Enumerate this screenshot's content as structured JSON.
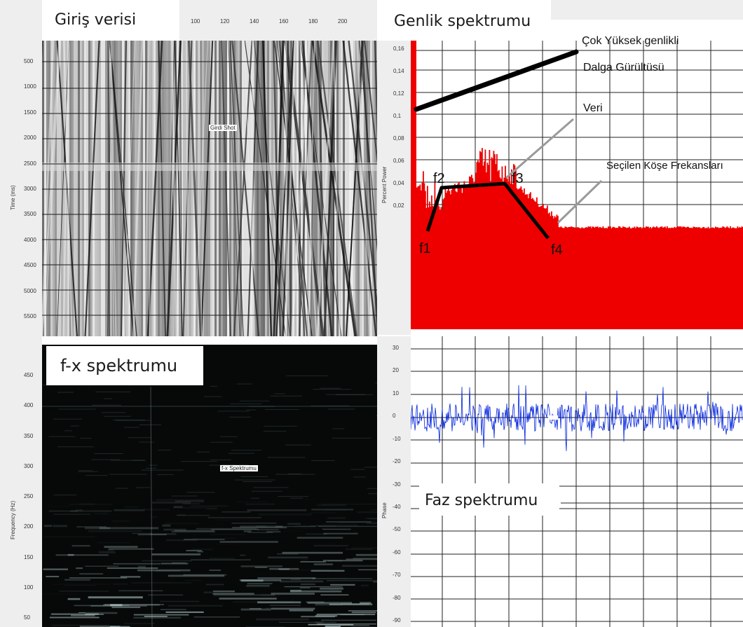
{
  "panels": {
    "input": {
      "title": "Giriş verisi",
      "inner_label": "Girdi Shot",
      "ylabel": "Time (ms)"
    },
    "amplitude": {
      "title": "Genlik spektrumu",
      "ylabel": "Percent Power"
    },
    "fx": {
      "title": "f-x spektrumu",
      "inner_label": "f-x Spektrumu",
      "ylabel": "Frequency (Hz)"
    },
    "phase": {
      "title": "Faz spektrumu",
      "ylabel": "Phase"
    }
  },
  "annotations": {
    "noise_line1": "Çok Yüksek genlikli",
    "noise_line2": "Dalga Gürültüsü",
    "data": "Veri",
    "corner": "Seçilen Köşe Frekansları",
    "f1": "f1",
    "f2": "f2",
    "f3": "f3",
    "f4": "f4"
  },
  "colors": {
    "amplitude_fill": "#ee0000",
    "phase_line": "#0022dd",
    "fx_bg": "#070909",
    "seismic_bg": "#b8b8b8"
  },
  "chart_data": [
    {
      "type": "area",
      "title": "Genlik spektrumu",
      "ylabel": "Percent Power",
      "y_ticks": [
        "0,16",
        "0,14",
        "0,12",
        "0,1",
        "0,08",
        "0,06",
        "0,04",
        "0,02"
      ],
      "grid": true,
      "corner_frequencies": [
        "f1",
        "f2",
        "f3",
        "f4"
      ]
    },
    {
      "type": "line",
      "title": "Faz spektrumu",
      "ylabel": "Phase",
      "y_ticks": [
        "30",
        "20",
        "10",
        "0",
        "-10",
        "-20",
        "-30",
        "-40",
        "-50",
        "-60",
        "-70",
        "-80",
        "-90"
      ],
      "grid": true
    },
    {
      "type": "heatmap",
      "title": "Giriş verisi",
      "ylabel": "Time (ms)",
      "y_ticks": [
        "500",
        "1000",
        "1500",
        "2000",
        "2500",
        "3000",
        "3500",
        "4000",
        "4500",
        "5000",
        "5500"
      ],
      "x_ticks": [
        "100",
        "120",
        "140",
        "160",
        "180",
        "200"
      ]
    },
    {
      "type": "heatmap",
      "title": "f-x spektrumu",
      "ylabel": "Frequency (Hz)",
      "y_ticks": [
        "450",
        "400",
        "350",
        "300",
        "250",
        "200",
        "150",
        "100",
        "50"
      ]
    }
  ]
}
